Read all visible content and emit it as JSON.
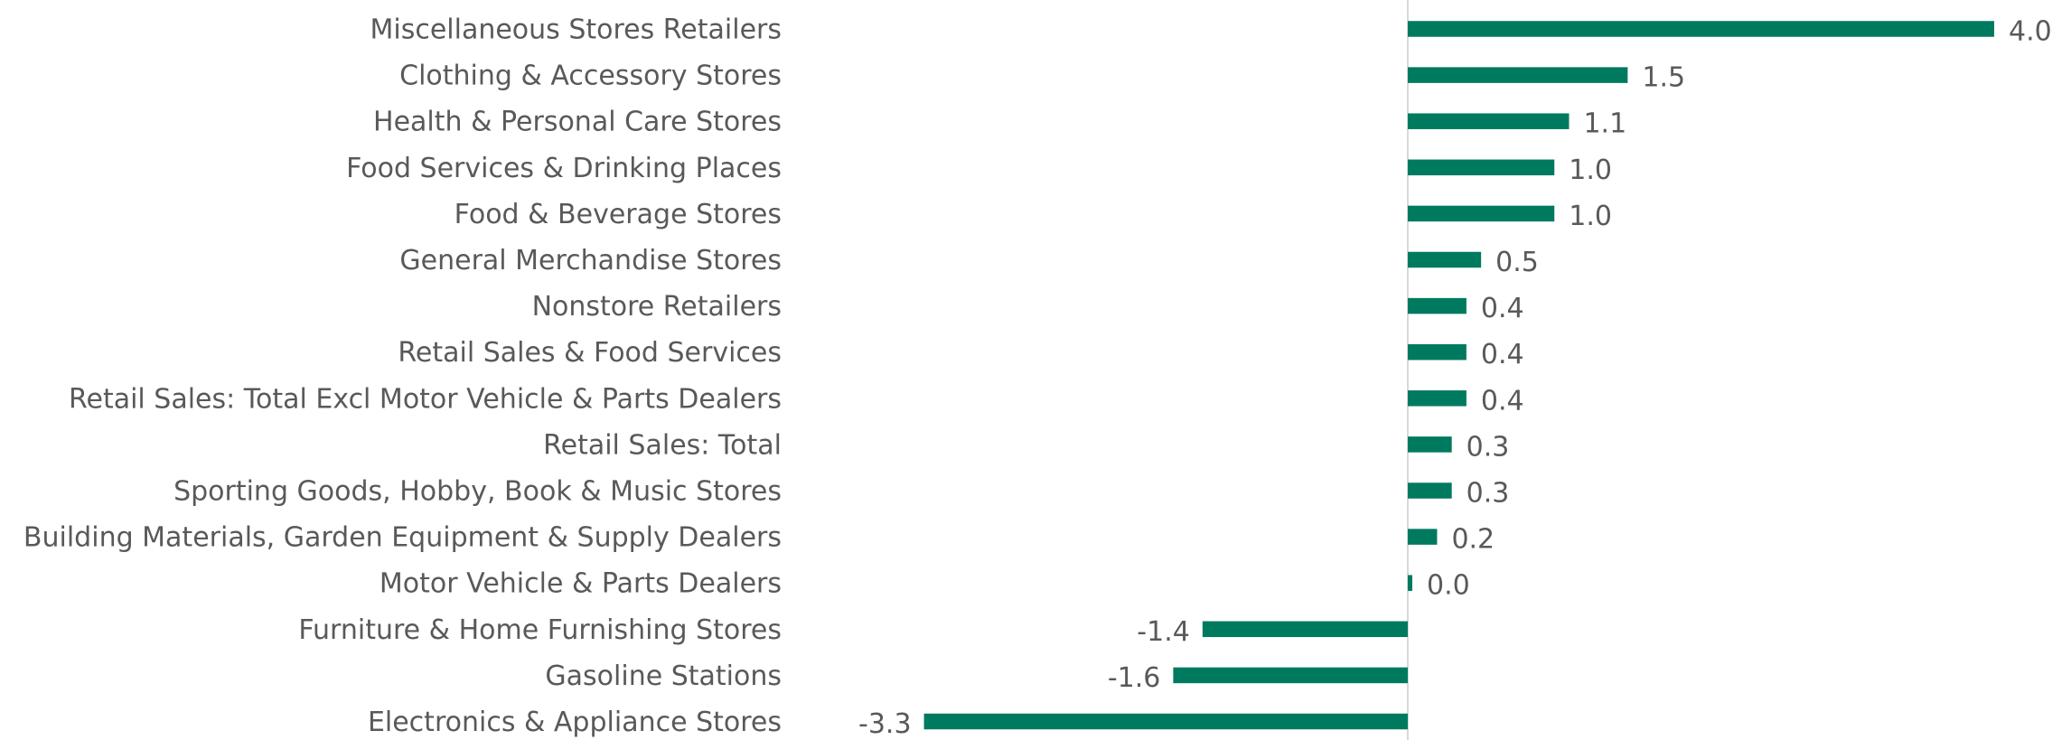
{
  "chart_data": {
    "type": "barh",
    "categories": [
      "Miscellaneous Stores Retailers",
      "Clothing & Accessory Stores",
      "Health & Personal Care Stores",
      "Food Services & Drinking Places",
      "Food & Beverage Stores",
      "General Merchandise Stores",
      "Nonstore Retailers",
      "Retail Sales & Food Services",
      "Retail Sales: Total Excl Motor Vehicle & Parts Dealers",
      "Retail Sales: Total",
      "Sporting Goods, Hobby, Book & Music Stores",
      "Building Materials, Garden Equipment & Supply Dealers",
      "Motor Vehicle & Parts Dealers",
      "Furniture & Home Furnishing Stores",
      "Gasoline Stations",
      "Electronics & Appliance Stores"
    ],
    "values": [
      4.0,
      1.5,
      1.1,
      1.0,
      1.0,
      0.5,
      0.4,
      0.4,
      0.4,
      0.3,
      0.3,
      0.2,
      0.0,
      -1.4,
      -1.6,
      -3.3
    ],
    "value_labels": [
      "4.0",
      "1.5",
      "1.1",
      "1.0",
      "1.0",
      "0.5",
      "0.4",
      "0.4",
      "0.4",
      "0.3",
      "0.3",
      "0.2",
      "0.0",
      "-1.4",
      "-1.6",
      "-3.3"
    ],
    "color": "#007a5e"
  }
}
